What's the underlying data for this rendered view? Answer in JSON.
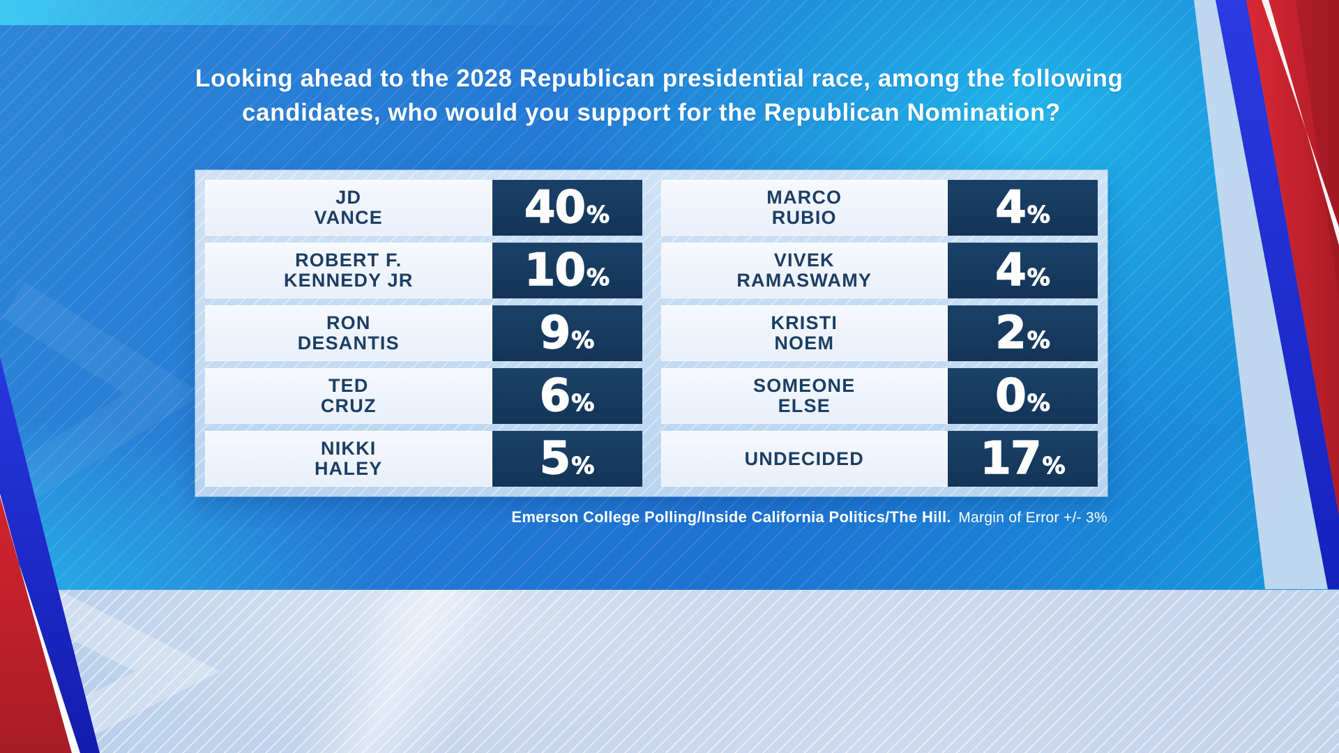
{
  "title": {
    "line1": "Looking ahead to the 2028 Republican presidential race, among the following",
    "line2": "candidates, who would you support for the Republican Nomination?"
  },
  "poll": {
    "candidates_left": [
      {
        "name_line1": "JD",
        "name_line2": "VANCE",
        "value": "40",
        "unit": "%"
      },
      {
        "name_line1": "ROBERT F.",
        "name_line2": "KENNEDY JR",
        "value": "10",
        "unit": "%"
      },
      {
        "name_line1": "RON",
        "name_line2": "DESANTIS",
        "value": "9",
        "unit": "%"
      },
      {
        "name_line1": "TED",
        "name_line2": "CRUZ",
        "value": "6",
        "unit": "%"
      },
      {
        "name_line1": "NIKKI",
        "name_line2": "HALEY",
        "value": "5",
        "unit": "%"
      }
    ],
    "candidates_right": [
      {
        "name_line1": "MARCO",
        "name_line2": "RUBIO",
        "value": "4",
        "unit": "%"
      },
      {
        "name_line1": "VIVEK",
        "name_line2": "RAMASWAMY",
        "value": "4",
        "unit": "%"
      },
      {
        "name_line1": "KRISTI",
        "name_line2": "NOEM",
        "value": "2",
        "unit": "%"
      },
      {
        "name_line1": "SOMEONE",
        "name_line2": "ELSE",
        "value": "0",
        "unit": "%"
      },
      {
        "name_line1": "UNDECIDED",
        "name_line2": "",
        "value": "17",
        "unit": "%"
      }
    ]
  },
  "source": {
    "organizations": "Emerson College Polling/Inside California Politics/The Hill.",
    "margin_note": "Margin of Error +/- 3%"
  },
  "colors": {
    "background_blue": "#1d72d2",
    "background_cyan_glow": "#20c4ee",
    "lower_band": "#c6d5ec",
    "frame_light_blue": "#b9d4ef",
    "name_cell_bg": "#eef3fa",
    "value_cell_navy": "#16395f",
    "name_text_navy": "#1c3e63",
    "accent_red": "#d2232f",
    "accent_royal_blue": "#1f2ed6",
    "text_white": "#ffffff"
  },
  "chart_data": {
    "type": "table",
    "title": "Looking ahead to the 2028 Republican presidential race, among the following candidates, who would you support for the Republican Nomination?",
    "categories": [
      "JD Vance",
      "Robert F. Kennedy Jr",
      "Ron DeSantis",
      "Ted Cruz",
      "Nikki Haley",
      "Marco Rubio",
      "Vivek Ramaswamy",
      "Kristi Noem",
      "Someone Else",
      "Undecided"
    ],
    "values": [
      40,
      10,
      9,
      6,
      5,
      4,
      4,
      2,
      0,
      17
    ],
    "unit": "percent",
    "source": "Emerson College Polling/Inside California Politics/The Hill.",
    "margin_of_error": "+/- 3%"
  }
}
